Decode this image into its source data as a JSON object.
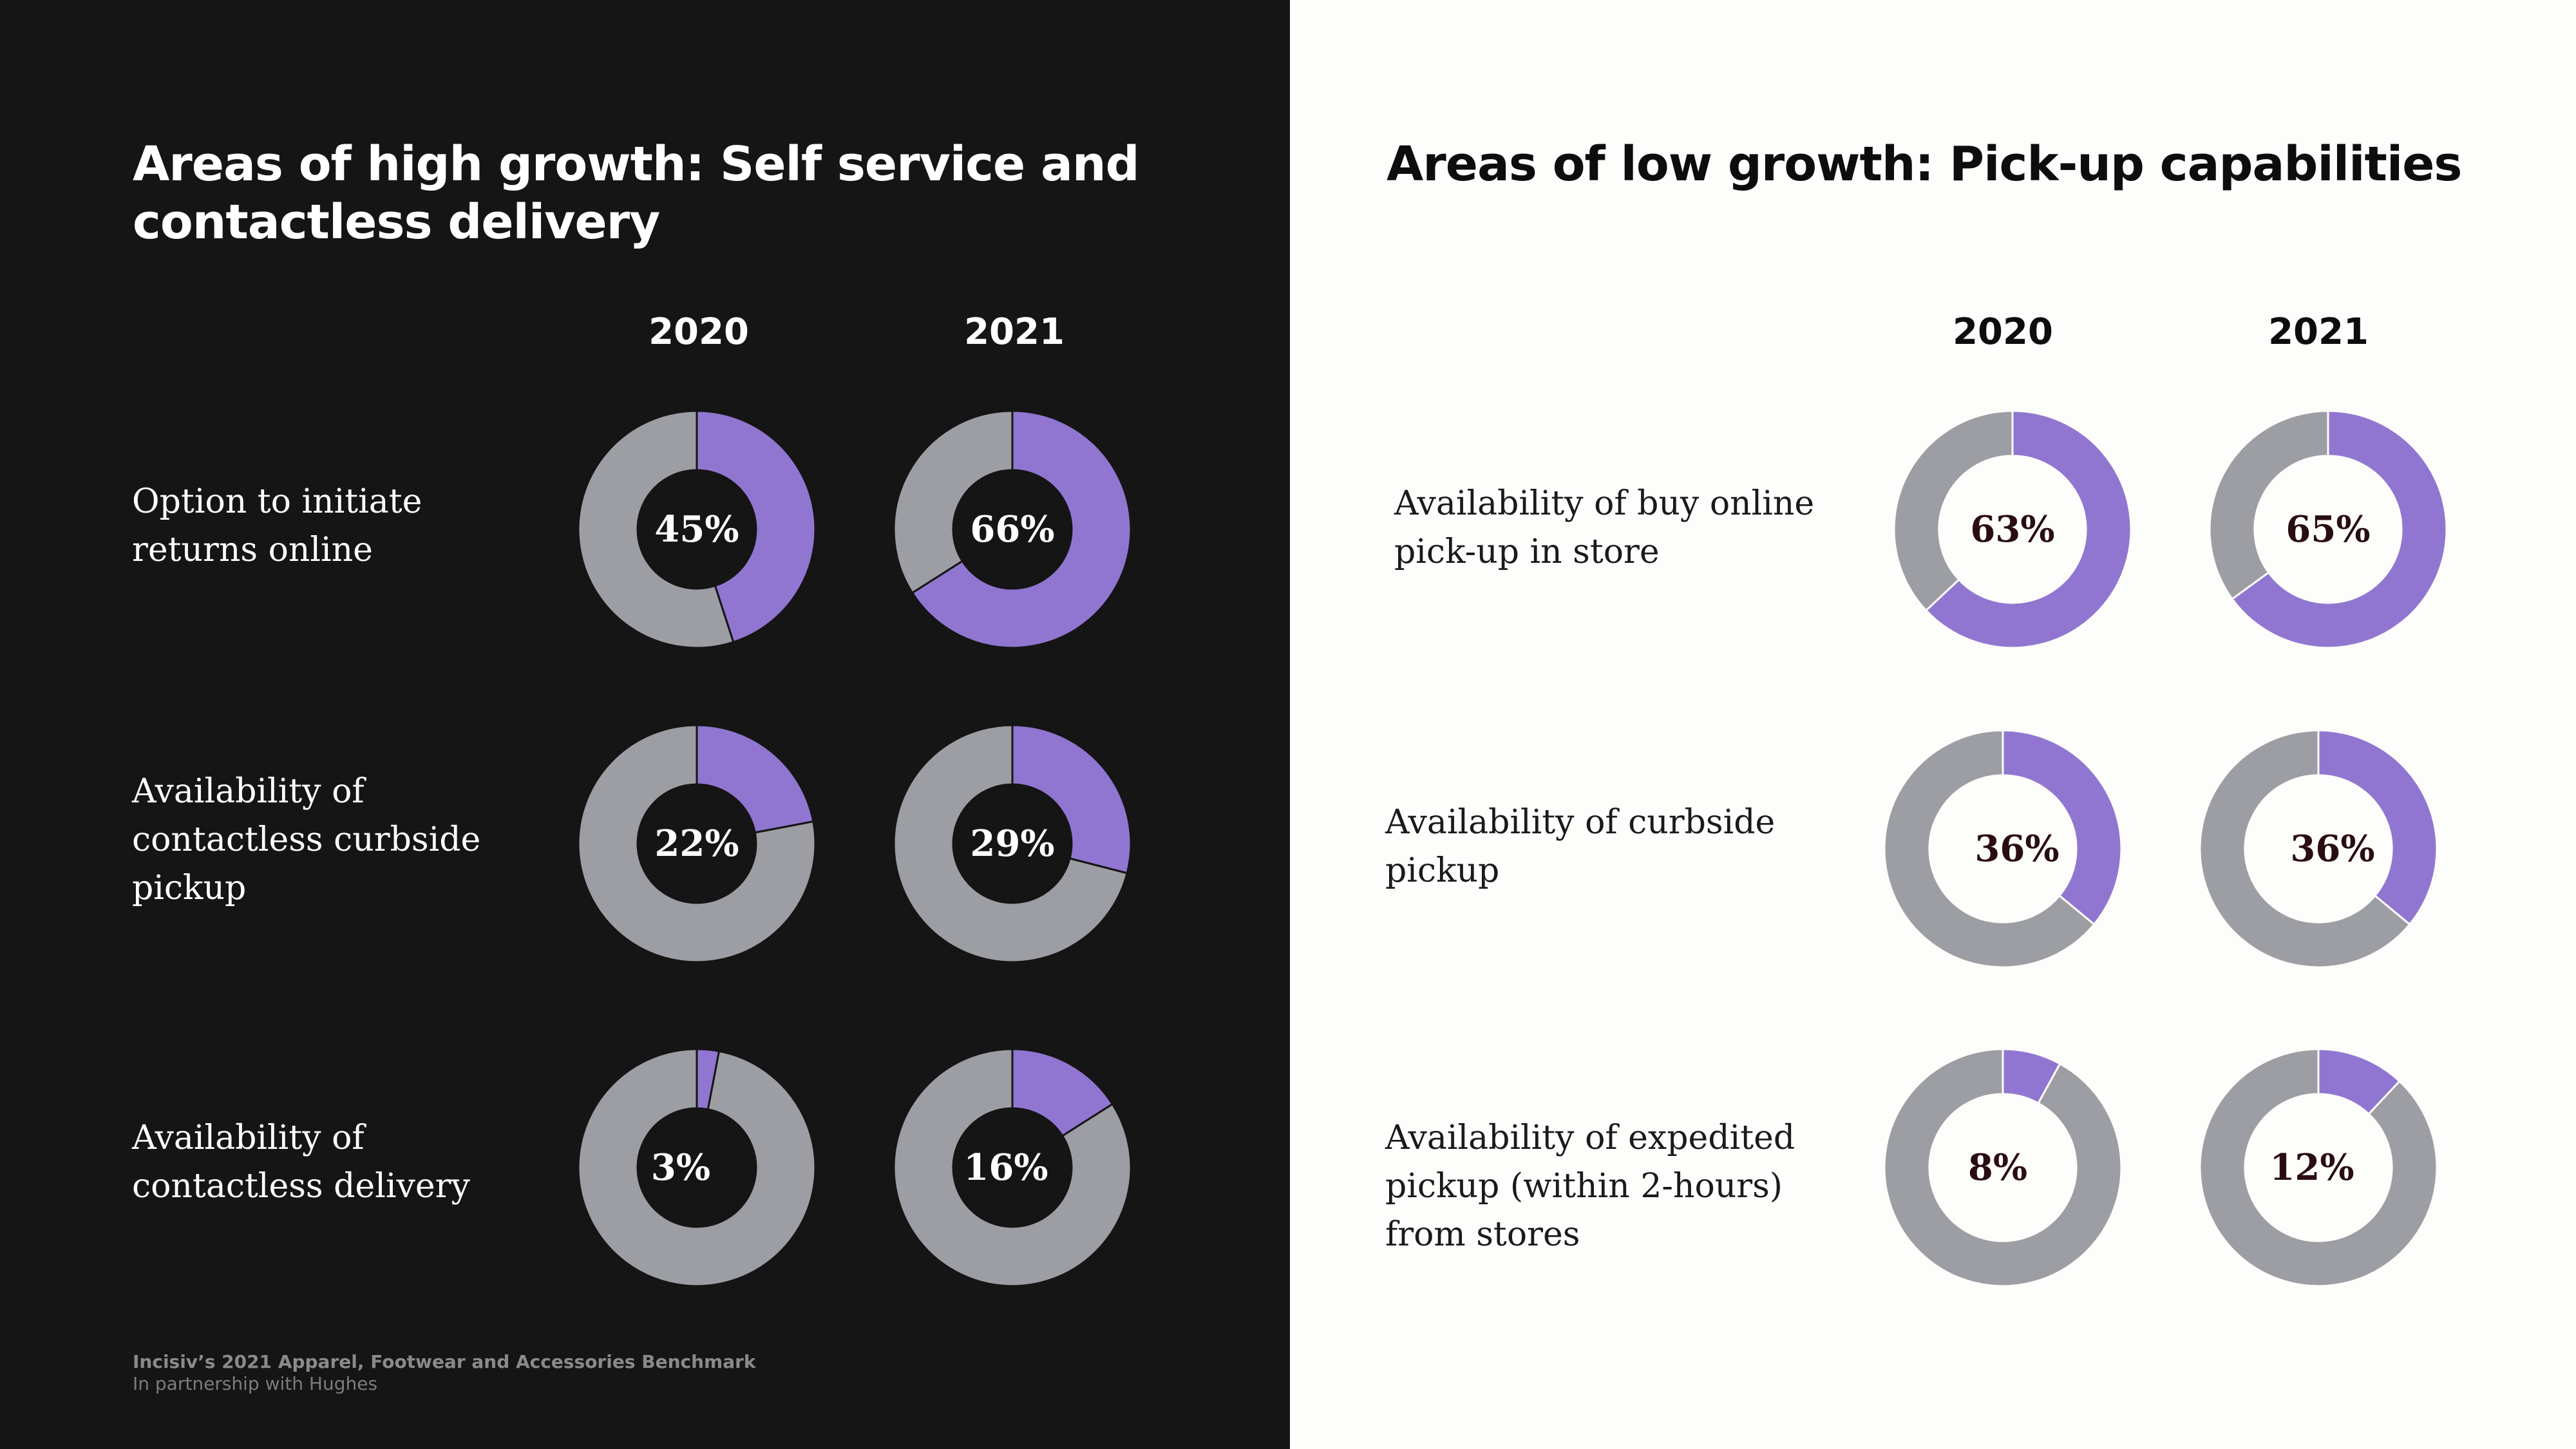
{
  "colors": {
    "accent": "#9176d1",
    "remainder": "#9d9ea3"
  },
  "left": {
    "title": "Areas of high growth: Self service and contactless delivery",
    "years": [
      "2020",
      "2021"
    ]
  },
  "right": {
    "title": "Areas of low growth: Pick-up capabilities",
    "years": [
      "2020",
      "2021"
    ]
  },
  "footer": {
    "source": "Incisiv’s 2021 Apparel, Footwear and Accessories Benchmark",
    "partner": "In partnership with Hughes"
  },
  "chart_data": [
    {
      "type": "pie",
      "title": "Areas of high growth: Self service and contactless delivery",
      "categories": [
        "2020",
        "2021"
      ],
      "series": [
        {
          "name": "Option to initiate returns online",
          "values": [
            45,
            66
          ],
          "labels": [
            "45%",
            "66%"
          ]
        },
        {
          "name": "Availability of contactless curbside pickup",
          "values": [
            22,
            29
          ],
          "labels": [
            "22%",
            "29%"
          ]
        },
        {
          "name": "Availability of contactless delivery",
          "values": [
            3,
            16
          ],
          "labels": [
            "3%",
            "16%"
          ]
        }
      ]
    },
    {
      "type": "pie",
      "title": "Areas of low growth: Pick-up capabilities",
      "categories": [
        "2020",
        "2021"
      ],
      "series": [
        {
          "name": "Availability of buy online pick-up in store",
          "values": [
            63,
            65
          ],
          "labels": [
            "63%",
            "65%"
          ]
        },
        {
          "name": "Availability of curbside pickup",
          "values": [
            36,
            36
          ],
          "labels": [
            "36%",
            "36%"
          ]
        },
        {
          "name": "Availability of expedited pickup (within 2-hours) from stores",
          "values": [
            8,
            12
          ],
          "labels": [
            "8%",
            "12%"
          ]
        }
      ]
    }
  ]
}
